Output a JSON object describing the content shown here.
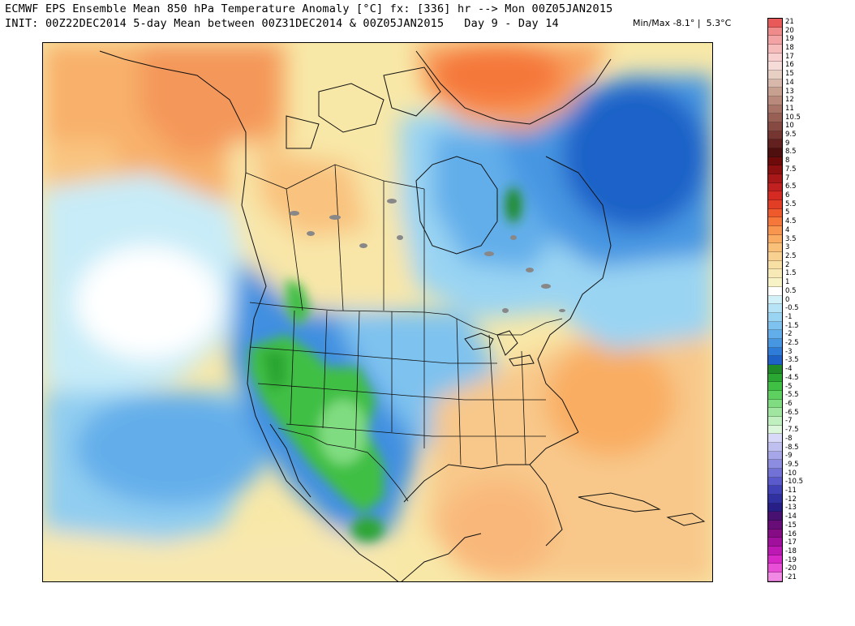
{
  "header": {
    "title_line1": "ECMWF EPS Ensemble Mean 850 hPa Temperature Anomaly [°C] fx: [336] hr --> Mon 00Z05JAN2015",
    "title_line2": "INIT: 00Z22DEC2014 5-day Mean between 00Z31DEC2014 & 00Z05JAN2015   Day 9 - Day 14",
    "minmax": "Min/Max -8.1° |  5.3°C"
  },
  "colorbar": {
    "labels": [
      "21",
      "20",
      "19",
      "18",
      "17",
      "16",
      "15",
      "14",
      "13",
      "12",
      "11",
      "10.5",
      "10",
      "9.5",
      "9",
      "8.5",
      "8",
      "7.5",
      "7",
      "6.5",
      "6",
      "5.5",
      "5",
      "4.5",
      "4",
      "3.5",
      "3",
      "2.5",
      "2",
      "1.5",
      "1",
      "0.5",
      "0",
      "-0.5",
      "-1",
      "-1.5",
      "-2",
      "-2.5",
      "-3",
      "-3.5",
      "-4",
      "-4.5",
      "-5",
      "-5.5",
      "-6",
      "-6.5",
      "-7",
      "-7.5",
      "-8",
      "-8.5",
      "-9",
      "-9.5",
      "-10",
      "-10.5",
      "-11",
      "-12",
      "-13",
      "-14",
      "-15",
      "-16",
      "-17",
      "-18",
      "-19",
      "-20",
      "-21"
    ],
    "colors": [
      "#e8595a",
      "#ef8b8b",
      "#f3a3a3",
      "#f6bcbc",
      "#f8d0d0",
      "#f6dcd8",
      "#e8cfc4",
      "#d7b8aa",
      "#c8a090",
      "#b98a7c",
      "#a87468",
      "#985f55",
      "#874a43",
      "#753530",
      "#62201e",
      "#500f0f",
      "#6e0a0a",
      "#8c1010",
      "#a81818",
      "#c02020",
      "#d42a22",
      "#e23e26",
      "#ee5a2c",
      "#f5783a",
      "#f8954e",
      "#f9ac62",
      "#f9c07a",
      "#f8d190",
      "#f8dfa4",
      "#f8eab6",
      "#f8f3c6",
      "#ffffff",
      "#d2f0f8",
      "#b6e4f6",
      "#9ad4f3",
      "#7ec2ef",
      "#62aeea",
      "#4696e2",
      "#2e7cd8",
      "#1e62c8",
      "#1e8a28",
      "#2aa632",
      "#3fbf44",
      "#5ed060",
      "#80dc80",
      "#a0e6a0",
      "#c0f0c0",
      "#dcf6dc",
      "#d8d8f8",
      "#c0c0f0",
      "#a6a6e8",
      "#8c8ce0",
      "#7272d6",
      "#5a5acc",
      "#4242b8",
      "#3030a0",
      "#281e88",
      "#481070",
      "#680c78",
      "#860c86",
      "#a0109c",
      "#be18b4",
      "#d828c8",
      "#e84ed6",
      "#f088e4"
    ]
  }
}
